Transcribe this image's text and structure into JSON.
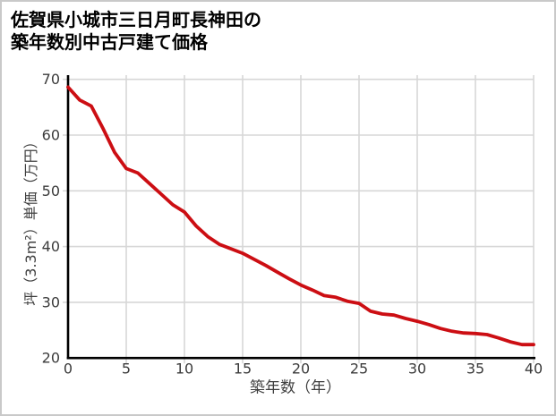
{
  "title": {
    "line1": "佐賀県小城市三日月町長神田の",
    "line2": "築年数別中古戸建て価格"
  },
  "chart_data": {
    "type": "line",
    "title": "佐賀県小城市三日月町長神田の築年数別中古戸建て価格",
    "xlabel": "築年数（年）",
    "ylabel": "坪（3.3m²）単価（万円）",
    "xlim": [
      0,
      40
    ],
    "ylim": [
      20,
      70
    ],
    "xticks": [
      0,
      5,
      10,
      15,
      20,
      25,
      30,
      35,
      40
    ],
    "yticks": [
      20,
      30,
      40,
      50,
      60,
      70
    ],
    "grid": true,
    "legend": "none",
    "x": [
      0,
      1,
      2,
      3,
      4,
      5,
      6,
      7,
      8,
      9,
      10,
      11,
      12,
      13,
      14,
      15,
      16,
      17,
      18,
      19,
      20,
      21,
      22,
      23,
      24,
      25,
      26,
      27,
      28,
      29,
      30,
      31,
      32,
      33,
      34,
      35,
      36,
      37,
      38,
      39,
      40
    ],
    "values": [
      68.6,
      66.3,
      65.2,
      61.2,
      56.9,
      54.0,
      53.2,
      51.3,
      49.4,
      47.5,
      46.2,
      43.7,
      41.8,
      40.4,
      39.6,
      38.8,
      37.7,
      36.6,
      35.4,
      34.2,
      33.1,
      32.2,
      31.2,
      30.9,
      30.2,
      29.8,
      28.4,
      27.9,
      27.7,
      27.1,
      26.6,
      26.0,
      25.3,
      24.8,
      24.5,
      24.4,
      24.2,
      23.6,
      22.9,
      22.4,
      22.4
    ],
    "line_color": "#cc0e13"
  },
  "colors": {
    "line": "#cc0e13",
    "grid": "#d7d7d7",
    "axis": "#000000",
    "tick_label": "#3b3b3b",
    "frame_border": "#c9c9c9",
    "background": "#ffffff"
  }
}
